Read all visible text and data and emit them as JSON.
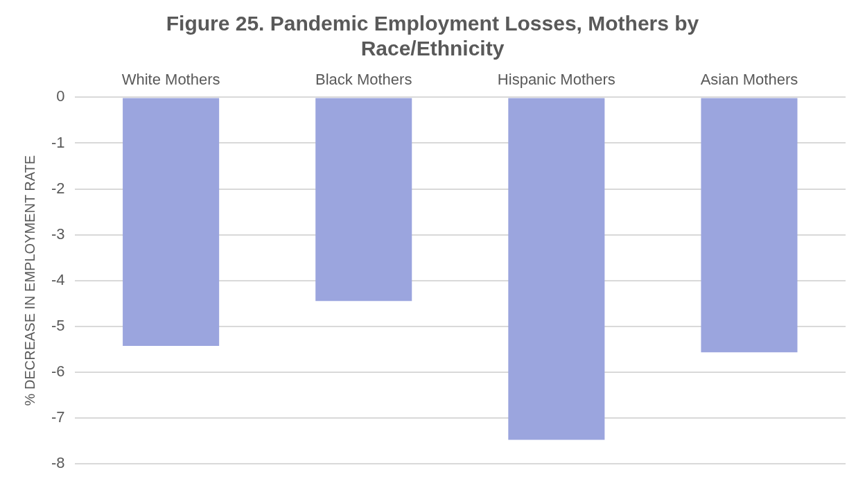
{
  "chart_data": {
    "type": "bar",
    "title": "Figure 25. Pandemic Employment Losses, Mothers by Race/Ethnicity",
    "ylabel": "% DECREASE IN EMPLOYMENT RATE",
    "categories": [
      "White Mothers",
      "Black Mothers",
      "Hispanic Mothers",
      "Asian Mothers"
    ],
    "values": [
      -5.43,
      -4.45,
      -7.48,
      -5.57
    ],
    "color": "#9ba5de",
    "ylim": [
      -8,
      0
    ],
    "yticks": [
      -8,
      -7,
      -6,
      -5,
      -4,
      -3,
      -2,
      -1,
      0
    ],
    "grid": "y",
    "legend": false
  }
}
